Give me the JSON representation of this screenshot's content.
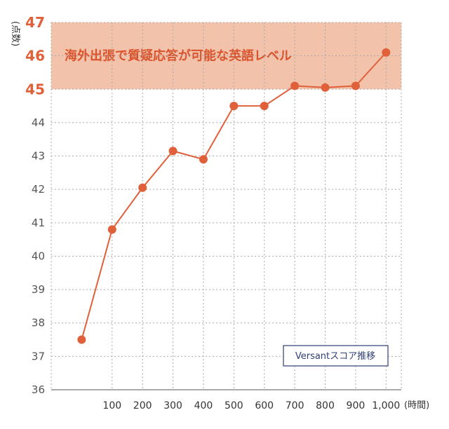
{
  "chart_data": {
    "type": "line",
    "ylabel": "(点数)",
    "xunit": "(時間)",
    "ylim": [
      36,
      47
    ],
    "xlim": [
      -100,
      1050
    ],
    "yticks": [
      36,
      37,
      38,
      39,
      40,
      41,
      42,
      43,
      44,
      45,
      46,
      47
    ],
    "ytick_labels": [
      "36",
      "37",
      "38",
      "39",
      "40",
      "41",
      "42",
      "43",
      "44",
      "45",
      "46",
      "47"
    ],
    "highlight_ticks": [
      45,
      46,
      47
    ],
    "xticks": [
      100,
      200,
      300,
      400,
      500,
      600,
      700,
      800,
      900,
      1000
    ],
    "xtick_labels": [
      "100",
      "200",
      "300",
      "400",
      "500",
      "600",
      "700",
      "800",
      "900",
      "1,000"
    ],
    "band": {
      "from": 45,
      "to": 47,
      "label": "海外出張で質疑応答が可能な英語レベル",
      "color": "#f3c2aa"
    },
    "series": [
      {
        "name": "Versantスコア推移",
        "color": "#e0603a",
        "x": [
          0,
          100,
          200,
          300,
          400,
          500,
          600,
          700,
          800,
          900,
          1000
        ],
        "y": [
          37.5,
          40.8,
          42.05,
          43.15,
          42.9,
          44.5,
          44.5,
          45.1,
          45.05,
          45.1,
          46.1
        ]
      }
    ],
    "legend": {
      "label": "Versantスコア推移",
      "position": "bottom-right"
    },
    "grid": true
  }
}
